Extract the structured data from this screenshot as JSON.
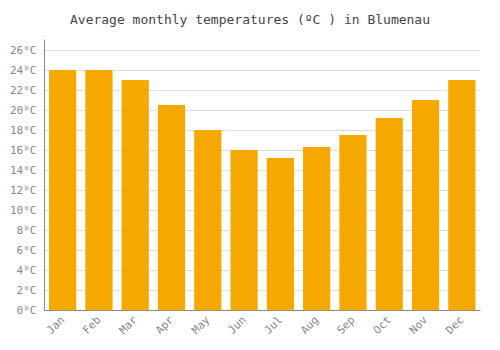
{
  "chart_data": {
    "type": "bar",
    "title": "Average monthly temperatures (ºC ) in Blumenau",
    "categories": [
      "Jan",
      "Feb",
      "Mar",
      "Apr",
      "May",
      "Jun",
      "Jul",
      "Aug",
      "Sep",
      "Oct",
      "Nov",
      "Dec"
    ],
    "values": [
      24.0,
      24.0,
      23.0,
      20.5,
      18.0,
      16.0,
      15.2,
      16.3,
      17.5,
      19.2,
      21.0,
      23.0
    ],
    "color": "#F5A800",
    "ylim": [
      0,
      27
    ],
    "yticks": [
      {
        "value": 0,
        "label": "0°C"
      },
      {
        "value": 2,
        "label": "2°C"
      },
      {
        "value": 4,
        "label": "4°C"
      },
      {
        "value": 6,
        "label": "6°C"
      },
      {
        "value": 8,
        "label": "8°C"
      },
      {
        "value": 10,
        "label": "10°C"
      },
      {
        "value": 12,
        "label": "12°C"
      },
      {
        "value": 14,
        "label": "14°C"
      },
      {
        "value": 16,
        "label": "16°C"
      },
      {
        "value": 18,
        "label": "18°C"
      },
      {
        "value": 20,
        "label": "20°C"
      },
      {
        "value": 22,
        "label": "22°C"
      },
      {
        "value": 24,
        "label": "24°C"
      },
      {
        "value": 26,
        "label": "26°C"
      }
    ],
    "grid": true
  }
}
